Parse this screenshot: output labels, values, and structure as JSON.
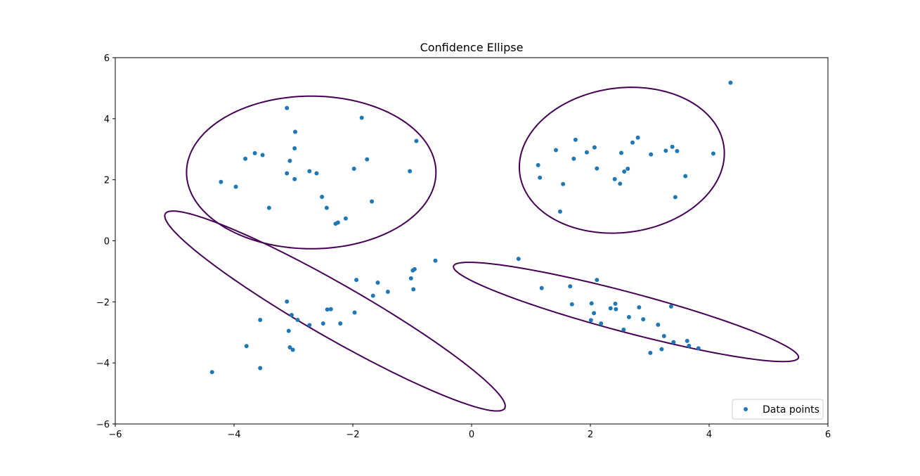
{
  "chart_data": {
    "type": "scatter",
    "title": "Confidence Ellipse",
    "xlabel": "",
    "ylabel": "",
    "xlim": [
      -6,
      6
    ],
    "ylim": [
      -6,
      6
    ],
    "xticks": [
      -6,
      -4,
      -2,
      0,
      2,
      4,
      6
    ],
    "yticks": [
      -6,
      -4,
      -2,
      0,
      2,
      4,
      6
    ],
    "grid": false,
    "legend_position": "lower-right",
    "series": [
      {
        "name": "Data points",
        "color": "#1f77b4",
        "points": [
          [
            -4.22,
            1.93
          ],
          [
            -3.97,
            1.77
          ],
          [
            -3.81,
            2.69
          ],
          [
            -3.65,
            2.87
          ],
          [
            -3.52,
            2.81
          ],
          [
            -3.41,
            1.08
          ],
          [
            -3.11,
            4.35
          ],
          [
            -3.11,
            2.21
          ],
          [
            -3.06,
            2.62
          ],
          [
            -2.97,
            3.57
          ],
          [
            -2.98,
            3.03
          ],
          [
            -2.98,
            2.02
          ],
          [
            -2.73,
            2.28
          ],
          [
            -2.61,
            2.21
          ],
          [
            -2.52,
            1.44
          ],
          [
            -2.44,
            1.08
          ],
          [
            -2.29,
            0.56
          ],
          [
            -2.25,
            0.6
          ],
          [
            -2.12,
            0.73
          ],
          [
            -1.98,
            2.36
          ],
          [
            -1.85,
            4.03
          ],
          [
            -1.76,
            2.67
          ],
          [
            -1.68,
            1.29
          ],
          [
            -1.04,
            2.28
          ],
          [
            -0.93,
            3.27
          ],
          [
            1.12,
            2.48
          ],
          [
            1.15,
            2.07
          ],
          [
            1.42,
            2.97
          ],
          [
            1.49,
            0.96
          ],
          [
            1.54,
            1.86
          ],
          [
            1.72,
            2.69
          ],
          [
            1.75,
            3.31
          ],
          [
            1.94,
            2.9
          ],
          [
            2.07,
            3.06
          ],
          [
            2.11,
            2.37
          ],
          [
            2.41,
            2.02
          ],
          [
            2.5,
            1.87
          ],
          [
            2.52,
            2.88
          ],
          [
            2.57,
            2.27
          ],
          [
            2.63,
            2.36
          ],
          [
            2.71,
            3.22
          ],
          [
            2.8,
            3.38
          ],
          [
            3.02,
            2.83
          ],
          [
            3.27,
            2.95
          ],
          [
            3.38,
            3.08
          ],
          [
            3.43,
            1.43
          ],
          [
            3.46,
            2.94
          ],
          [
            3.6,
            2.12
          ],
          [
            4.07,
            2.86
          ],
          [
            4.36,
            5.18
          ],
          [
            -4.37,
            -4.3
          ],
          [
            -3.79,
            -3.45
          ],
          [
            -3.56,
            -2.59
          ],
          [
            -3.56,
            -4.17
          ],
          [
            -3.11,
            -1.99
          ],
          [
            -3.08,
            -2.95
          ],
          [
            -3.06,
            -3.49
          ],
          [
            -3.03,
            -2.43
          ],
          [
            -3.01,
            -3.57
          ],
          [
            -2.93,
            -2.59
          ],
          [
            -2.73,
            -2.76
          ],
          [
            -2.5,
            -2.71
          ],
          [
            -2.43,
            -2.25
          ],
          [
            -2.37,
            -2.24
          ],
          [
            -2.21,
            -2.71
          ],
          [
            -1.97,
            -2.35
          ],
          [
            -1.94,
            -1.28
          ],
          [
            -1.66,
            -1.8
          ],
          [
            -1.58,
            -1.37
          ],
          [
            -1.41,
            -1.67
          ],
          [
            -1.02,
            -1.23
          ],
          [
            -0.99,
            -0.97
          ],
          [
            -0.98,
            -1.59
          ],
          [
            -0.96,
            -0.93
          ],
          [
            -0.61,
            -0.65
          ],
          [
            0.79,
            -0.59
          ],
          [
            1.18,
            -1.55
          ],
          [
            1.66,
            -1.49
          ],
          [
            1.69,
            -2.08
          ],
          [
            2.01,
            -2.6
          ],
          [
            2.02,
            -2.05
          ],
          [
            2.06,
            -2.37
          ],
          [
            2.11,
            -1.28
          ],
          [
            2.18,
            -2.71
          ],
          [
            2.34,
            -2.21
          ],
          [
            2.42,
            -2.06
          ],
          [
            2.43,
            -2.24
          ],
          [
            2.56,
            -2.91
          ],
          [
            2.65,
            -2.5
          ],
          [
            2.82,
            -2.18
          ],
          [
            2.89,
            -2.57
          ],
          [
            3.01,
            -3.67
          ],
          [
            3.14,
            -2.75
          ],
          [
            3.2,
            -3.55
          ],
          [
            3.24,
            -3.12
          ],
          [
            3.36,
            -2.15
          ],
          [
            3.4,
            -3.32
          ],
          [
            3.63,
            -3.28
          ],
          [
            3.66,
            -3.44
          ],
          [
            3.82,
            -3.52
          ]
        ]
      }
    ],
    "ellipses": [
      {
        "color": "#440154",
        "center": [
          -2.7,
          2.24
        ],
        "width": 4.2,
        "height": 5.0,
        "angle": 0
      },
      {
        "color": "#440154",
        "center": [
          2.53,
          2.64
        ],
        "width": 3.42,
        "height": 4.8,
        "angle": -8
      },
      {
        "color": "#440154",
        "center": [
          -2.3,
          -2.3
        ],
        "width": 1.35,
        "height": 8.6,
        "angle": 41
      },
      {
        "color": "#440154",
        "center": [
          2.6,
          -2.33
        ],
        "width": 1.2,
        "height": 6.55,
        "angle": 62
      }
    ]
  }
}
